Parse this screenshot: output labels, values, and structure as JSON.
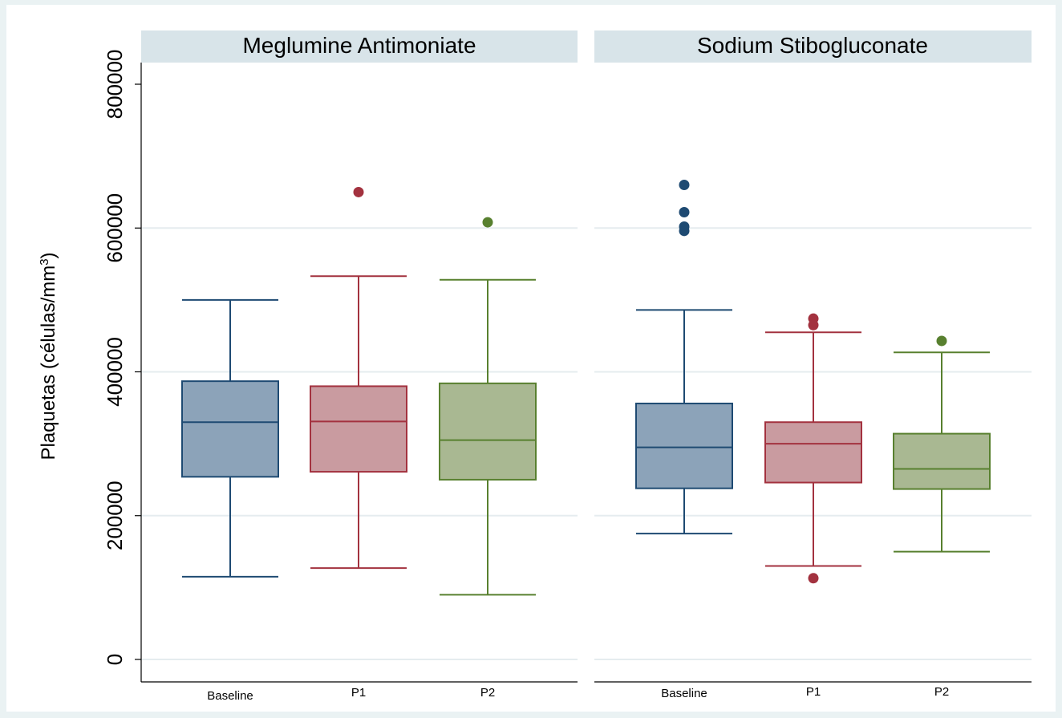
{
  "chart_data": {
    "type": "box",
    "ylabel": "Plaquetas (células/mm",
    "ylabel_sup": "3",
    "ylabel_close": ")",
    "ylim": [
      0,
      800000
    ],
    "yticks": [
      0,
      200000,
      400000,
      600000,
      800000
    ],
    "ytick_labels": [
      "0",
      "200000",
      "400000",
      "600000",
      "800000"
    ],
    "categories": [
      "Baseline",
      "P1",
      "P2"
    ],
    "series_colors": {
      "Baseline": {
        "fill": "#8ca3b9",
        "stroke": "#1e4a72"
      },
      "P1": {
        "fill": "#c99ba0",
        "stroke": "#a3323f"
      },
      "P2": {
        "fill": "#a9b892",
        "stroke": "#58802f"
      }
    },
    "panels": [
      {
        "title": "Meglumine Antimoniate",
        "boxes": [
          {
            "category": "Baseline",
            "whisker_low": 115000,
            "q1": 254000,
            "median": 330000,
            "q3": 387000,
            "whisker_high": 500000,
            "outliers": []
          },
          {
            "category": "P1",
            "whisker_low": 127000,
            "q1": 261000,
            "median": 331000,
            "q3": 380000,
            "whisker_high": 533000,
            "outliers": [
              650000
            ]
          },
          {
            "category": "P2",
            "whisker_low": 90000,
            "q1": 250000,
            "median": 305000,
            "q3": 384000,
            "whisker_high": 528000,
            "outliers": [
              608000
            ]
          }
        ]
      },
      {
        "title": "Sodium Stibogluconate",
        "boxes": [
          {
            "category": "Baseline",
            "whisker_low": 175000,
            "q1": 238000,
            "median": 295000,
            "q3": 356000,
            "whisker_high": 486000,
            "outliers": [
              660000,
              622000,
              602000,
              596000
            ]
          },
          {
            "category": "P1",
            "whisker_low": 130000,
            "q1": 246000,
            "median": 300000,
            "q3": 330000,
            "whisker_high": 455000,
            "outliers": [
              474000,
              465000,
              113000
            ]
          },
          {
            "category": "P2",
            "whisker_low": 150000,
            "q1": 237000,
            "median": 265000,
            "q3": 314000,
            "whisker_high": 427000,
            "outliers": [
              443000
            ]
          }
        ]
      }
    ]
  }
}
